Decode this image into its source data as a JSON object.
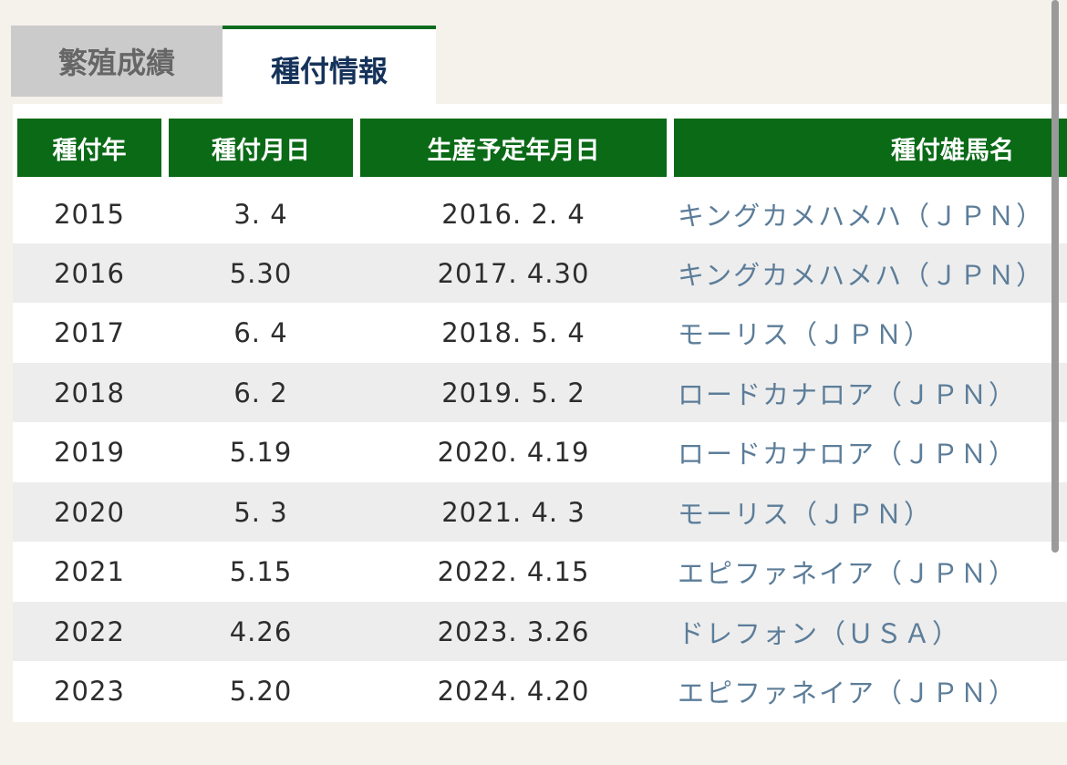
{
  "tabs": {
    "breeding_results": "繁殖成績",
    "covering_info": "種付情報"
  },
  "table": {
    "headers": {
      "year": "種付年",
      "date": "種付月日",
      "expected_birth": "生産予定年月日",
      "stallion": "種付雄馬名"
    },
    "rows": [
      {
        "year": "2015",
        "date": "3. 4",
        "expected_birth": "2016. 2. 4",
        "stallion": "キングカメハメハ（ＪＰＮ）"
      },
      {
        "year": "2016",
        "date": "5.30",
        "expected_birth": "2017. 4.30",
        "stallion": "キングカメハメハ（ＪＰＮ）"
      },
      {
        "year": "2017",
        "date": "6. 4",
        "expected_birth": "2018. 5. 4",
        "stallion": "モーリス（ＪＰＮ）"
      },
      {
        "year": "2018",
        "date": "6. 2",
        "expected_birth": "2019. 5. 2",
        "stallion": "ロードカナロア（ＪＰＮ）"
      },
      {
        "year": "2019",
        "date": "5.19",
        "expected_birth": "2020. 4.19",
        "stallion": "ロードカナロア（ＪＰＮ）"
      },
      {
        "year": "2020",
        "date": "5. 3",
        "expected_birth": "2021. 4. 3",
        "stallion": "モーリス（ＪＰＮ）"
      },
      {
        "year": "2021",
        "date": "5.15",
        "expected_birth": "2022. 4.15",
        "stallion": "エピファネイア（ＪＰＮ）"
      },
      {
        "year": "2022",
        "date": "4.26",
        "expected_birth": "2023. 3.26",
        "stallion": "ドレフォン（ＵＳＡ）"
      },
      {
        "year": "2023",
        "date": "5.20",
        "expected_birth": "2024. 4.20",
        "stallion": "エピファネイア（ＪＰＮ）"
      }
    ]
  },
  "colors": {
    "header_green": "#0a6a16",
    "link_blue": "#5c7d99",
    "active_tab_text": "#15325a"
  }
}
